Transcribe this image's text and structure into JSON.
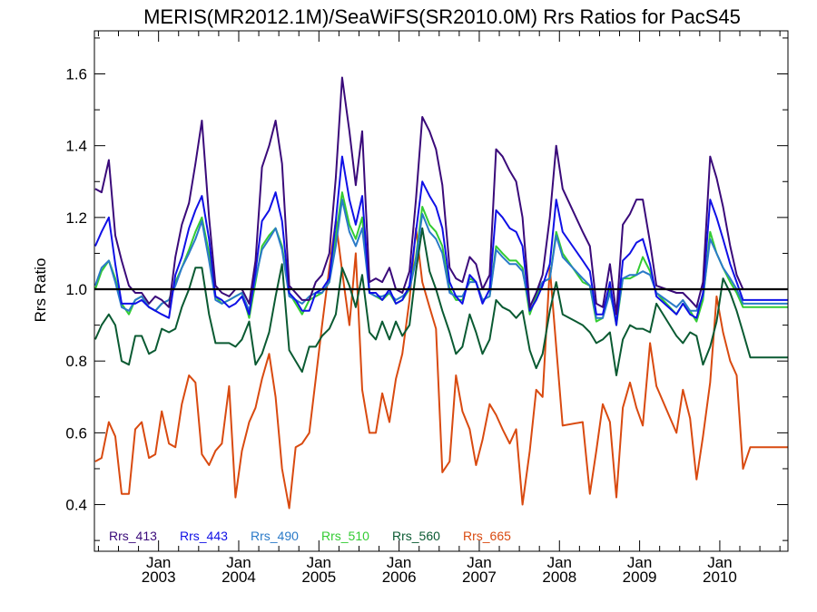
{
  "chart_data": {
    "type": "line",
    "title": "MERIS(MR2012.1M)/SeaWiFS(SR2010.0M)  Rrs Ratios for PacS45",
    "xlabel": "",
    "ylabel": "Rrs Ratio",
    "xlim": [
      2002.2,
      2010.85
    ],
    "ylim": [
      0.27,
      1.72
    ],
    "yticks": [
      0.4,
      0.6,
      0.8,
      1.0,
      1.2,
      1.4,
      1.6
    ],
    "ytick_labels": [
      "0.4",
      "0.6",
      "0.8",
      "1.0",
      "1.2",
      "1.4",
      "1.6"
    ],
    "xticks": [
      2003,
      2004,
      2005,
      2006,
      2007,
      2008,
      2009,
      2010
    ],
    "xtick_month_label": "Jan",
    "xtick_year_labels": [
      "2003",
      "2004",
      "2005",
      "2006",
      "2007",
      "2008",
      "2009",
      "2010"
    ],
    "reference_line": 1.0,
    "legend_position": "bottom-left",
    "x": [
      2002.21,
      2002.29,
      2002.38,
      2002.46,
      2002.54,
      2002.63,
      2002.71,
      2002.79,
      2002.88,
      2002.96,
      2003.04,
      2003.13,
      2003.21,
      2003.29,
      2003.38,
      2003.46,
      2003.54,
      2003.63,
      2003.71,
      2003.79,
      2003.88,
      2003.96,
      2004.04,
      2004.13,
      2004.21,
      2004.29,
      2004.38,
      2004.46,
      2004.54,
      2004.63,
      2004.71,
      2004.79,
      2004.88,
      2004.96,
      2005.04,
      2005.13,
      2005.21,
      2005.29,
      2005.38,
      2005.46,
      2005.54,
      2005.63,
      2005.71,
      2005.79,
      2005.88,
      2005.96,
      2006.04,
      2006.13,
      2006.21,
      2006.29,
      2006.38,
      2006.46,
      2006.54,
      2006.63,
      2006.71,
      2006.79,
      2006.88,
      2006.96,
      2007.04,
      2007.13,
      2007.21,
      2007.29,
      2007.38,
      2007.46,
      2007.54,
      2007.63,
      2007.71,
      2007.79,
      2007.88,
      2007.96,
      2008.04,
      2008.29,
      2008.38,
      2008.46,
      2008.54,
      2008.63,
      2008.71,
      2008.79,
      2008.88,
      2008.96,
      2009.04,
      2009.13,
      2009.21,
      2009.46,
      2009.54,
      2009.63,
      2009.71,
      2009.79,
      2009.88,
      2009.96,
      2010.04,
      2010.13,
      2010.21,
      2010.29,
      2010.38,
      2010.46,
      2010.54,
      2010.63,
      2010.71,
      2010.79,
      2010.85
    ],
    "series": [
      {
        "name": "Rrs_413",
        "color": "#3a0a7a",
        "values": [
          1.28,
          1.27,
          1.36,
          1.15,
          1.08,
          1.01,
          0.99,
          0.99,
          0.96,
          0.98,
          0.97,
          0.95,
          1.09,
          1.18,
          1.24,
          1.35,
          1.47,
          1.2,
          1.01,
          0.99,
          0.98,
          1.0,
          1.0,
          0.96,
          1.08,
          1.34,
          1.4,
          1.47,
          1.35,
          1.01,
          0.99,
          0.97,
          0.97,
          1.02,
          1.04,
          1.1,
          1.31,
          1.59,
          1.44,
          1.29,
          1.44,
          1.02,
          1.03,
          1.02,
          1.06,
          1.0,
          0.99,
          1.05,
          1.25,
          1.48,
          1.44,
          1.39,
          1.29,
          1.06,
          1.03,
          1.02,
          1.09,
          1.07,
          1.0,
          1.04,
          1.39,
          1.37,
          1.33,
          1.3,
          1.2,
          0.95,
          0.99,
          1.04,
          1.2,
          1.4,
          1.28,
          1.16,
          1.12,
          0.96,
          0.95,
          1.07,
          0.93,
          1.18,
          1.21,
          1.25,
          1.25,
          1.13,
          1.01,
          0.99,
          0.99,
          0.97,
          0.95,
          1.02,
          1.37,
          1.31,
          1.23,
          1.12,
          1.04,
          1.0,
          1.0,
          1.0,
          1.0,
          1.0,
          1.0,
          1.0,
          1.0
        ]
      },
      {
        "name": "Rrs_443",
        "color": "#1010e6",
        "values": [
          1.12,
          1.16,
          1.2,
          1.07,
          0.96,
          0.96,
          0.96,
          0.97,
          0.95,
          0.94,
          0.93,
          0.92,
          1.04,
          1.09,
          1.17,
          1.22,
          1.26,
          1.14,
          0.98,
          0.97,
          0.95,
          0.96,
          0.98,
          0.93,
          1.05,
          1.19,
          1.22,
          1.27,
          1.19,
          0.99,
          0.97,
          0.94,
          0.94,
          0.99,
          1.0,
          1.03,
          1.19,
          1.37,
          1.25,
          1.18,
          1.26,
          0.99,
          0.99,
          0.97,
          1.0,
          0.96,
          0.97,
          1.01,
          1.16,
          1.3,
          1.26,
          1.23,
          1.17,
          1.02,
          0.98,
          0.96,
          1.04,
          1.02,
          0.96,
          1.0,
          1.22,
          1.2,
          1.17,
          1.16,
          1.12,
          0.94,
          0.97,
          1.01,
          1.07,
          1.25,
          1.16,
          1.08,
          1.05,
          0.93,
          0.93,
          1.02,
          0.9,
          1.08,
          1.1,
          1.13,
          1.14,
          1.07,
          0.98,
          0.93,
          0.96,
          0.93,
          0.92,
          0.99,
          1.25,
          1.2,
          1.14,
          1.07,
          1.02,
          0.97,
          0.97,
          0.97,
          0.97,
          0.97,
          0.97,
          0.97,
          0.97
        ]
      },
      {
        "name": "Rrs_490",
        "color": "#2a7ac8",
        "values": [
          1.01,
          1.06,
          1.08,
          1.02,
          0.95,
          0.94,
          0.97,
          0.98,
          0.95,
          0.94,
          0.96,
          0.97,
          1.01,
          1.06,
          1.1,
          1.14,
          1.19,
          1.08,
          0.97,
          0.96,
          0.97,
          0.98,
          0.99,
          0.94,
          1.03,
          1.11,
          1.14,
          1.17,
          1.11,
          0.98,
          0.97,
          0.96,
          0.98,
          0.99,
          0.99,
          1.02,
          1.12,
          1.25,
          1.16,
          1.12,
          1.17,
          0.99,
          0.98,
          0.98,
          0.99,
          0.97,
          0.98,
          1.0,
          1.08,
          1.21,
          1.16,
          1.14,
          1.1,
          0.99,
          0.98,
          0.98,
          1.02,
          1.02,
          0.97,
          0.98,
          1.11,
          1.09,
          1.07,
          1.07,
          1.05,
          0.95,
          0.99,
          1.02,
          1.03,
          1.15,
          1.09,
          1.03,
          1.01,
          0.92,
          0.92,
          0.99,
          0.91,
          1.03,
          1.04,
          1.04,
          1.05,
          1.04,
          0.99,
          0.95,
          0.97,
          0.94,
          0.94,
          0.98,
          1.14,
          1.1,
          1.06,
          1.03,
          1.0,
          0.96,
          0.96,
          0.96,
          0.96,
          0.96,
          0.96,
          0.96,
          0.96
        ]
      },
      {
        "name": "Rrs_510",
        "color": "#33cc33",
        "values": [
          1.0,
          1.05,
          1.08,
          1.03,
          0.96,
          0.93,
          0.97,
          0.98,
          0.95,
          0.94,
          0.96,
          0.97,
          1.02,
          1.06,
          1.11,
          1.16,
          1.2,
          1.1,
          0.98,
          0.96,
          0.97,
          0.98,
          0.99,
          0.92,
          1.02,
          1.12,
          1.15,
          1.17,
          1.12,
          0.99,
          0.96,
          0.93,
          0.97,
          0.98,
          0.99,
          1.02,
          1.15,
          1.27,
          1.18,
          1.14,
          1.2,
          0.99,
          0.98,
          0.97,
          0.99,
          0.96,
          0.97,
          1.0,
          1.09,
          1.23,
          1.18,
          1.16,
          1.12,
          1.0,
          0.97,
          0.97,
          1.03,
          1.02,
          0.97,
          0.98,
          1.12,
          1.1,
          1.08,
          1.08,
          1.06,
          0.93,
          0.98,
          1.02,
          1.03,
          1.16,
          1.1,
          1.02,
          1.01,
          0.91,
          0.92,
          1.0,
          0.9,
          1.03,
          1.03,
          1.04,
          1.09,
          1.05,
          0.99,
          0.93,
          0.96,
          0.94,
          0.91,
          0.97,
          1.16,
          1.1,
          1.06,
          1.02,
          0.99,
          0.95,
          0.95,
          0.95,
          0.95,
          0.95,
          0.95,
          0.95,
          0.95
        ]
      },
      {
        "name": "Rrs_560",
        "color": "#0a5a32",
        "values": [
          0.86,
          0.9,
          0.93,
          0.9,
          0.8,
          0.79,
          0.87,
          0.87,
          0.82,
          0.83,
          0.89,
          0.88,
          0.89,
          0.95,
          1.0,
          1.06,
          1.06,
          0.93,
          0.85,
          0.85,
          0.85,
          0.84,
          0.86,
          0.91,
          0.79,
          0.82,
          0.88,
          0.98,
          1.07,
          0.83,
          0.8,
          0.77,
          0.84,
          0.84,
          0.87,
          0.89,
          0.93,
          1.06,
          1.01,
          0.95,
          1.04,
          0.88,
          0.86,
          0.91,
          0.86,
          0.91,
          0.87,
          0.9,
          1.05,
          1.17,
          1.05,
          1.0,
          0.94,
          0.88,
          0.82,
          0.84,
          0.93,
          0.88,
          0.82,
          0.86,
          0.97,
          0.95,
          0.94,
          0.92,
          0.94,
          0.83,
          0.78,
          0.82,
          0.94,
          1.02,
          0.93,
          0.9,
          0.88,
          0.85,
          0.86,
          0.88,
          0.76,
          0.86,
          0.9,
          0.89,
          0.89,
          0.88,
          0.96,
          0.87,
          0.85,
          0.88,
          0.87,
          0.79,
          0.84,
          0.91,
          1.03,
          0.99,
          0.94,
          0.88,
          0.81,
          0.81,
          0.81,
          0.81,
          0.81,
          0.81,
          0.81
        ]
      },
      {
        "name": "Rrs_665",
        "color": "#d94a10",
        "values": [
          0.52,
          0.53,
          0.63,
          0.59,
          0.43,
          0.43,
          0.61,
          0.63,
          0.53,
          0.54,
          0.66,
          0.57,
          0.56,
          0.68,
          0.76,
          0.74,
          0.54,
          0.51,
          0.55,
          0.57,
          0.73,
          0.42,
          0.55,
          0.63,
          0.67,
          0.75,
          0.82,
          0.7,
          0.5,
          0.39,
          0.56,
          0.57,
          0.6,
          0.75,
          0.9,
          1.06,
          1.19,
          1.05,
          0.9,
          1.1,
          0.72,
          0.6,
          0.6,
          0.71,
          0.63,
          0.75,
          0.82,
          0.97,
          1.17,
          1.02,
          0.95,
          0.89,
          0.49,
          0.52,
          0.76,
          0.66,
          0.61,
          0.51,
          0.58,
          0.68,
          0.65,
          0.61,
          0.57,
          0.61,
          0.4,
          0.55,
          0.72,
          0.7,
          1.06,
          0.84,
          0.62,
          0.63,
          0.43,
          0.55,
          0.68,
          0.63,
          0.42,
          0.67,
          0.74,
          0.67,
          0.62,
          0.85,
          0.73,
          0.6,
          0.72,
          0.64,
          0.47,
          0.59,
          0.74,
          0.98,
          0.88,
          0.8,
          0.76,
          0.5,
          0.56,
          0.56,
          0.56,
          0.56,
          0.56,
          0.56,
          0.56
        ]
      }
    ]
  }
}
